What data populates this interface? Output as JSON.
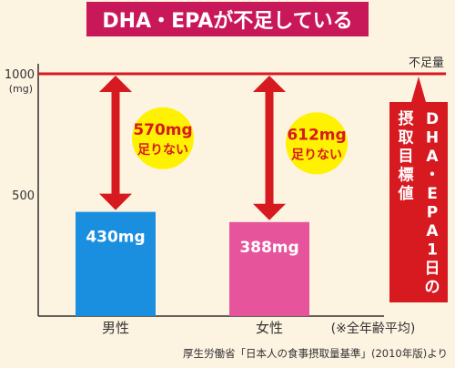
{
  "title": "DHA・EPAが不足している",
  "source": "厚生労働省「日本人の食事摂取量基準」(2010年版)より",
  "chart_data": {
    "type": "bar",
    "categories": [
      "男性",
      "女性"
    ],
    "values": [
      430,
      388
    ],
    "value_labels": [
      "430mg",
      "388mg"
    ],
    "ylim": [
      0,
      1000
    ],
    "yticks": [
      500,
      1000
    ],
    "ytick_labels": [
      "500",
      "1000"
    ],
    "y_unit": "(mg)",
    "reference_line": {
      "value": 1000,
      "label": "不足量"
    },
    "shortfalls": [
      {
        "value": "570mg",
        "text": "足りない"
      },
      {
        "value": "612mg",
        "text": "足りない"
      }
    ],
    "side_label": "DHA・EPA1日の摂取目標値",
    "note": "(※全年齢平均)",
    "colors": [
      "#1a8fe0",
      "#e6559c"
    ],
    "line_color": "#d71920",
    "circle_color": "#fff200"
  }
}
